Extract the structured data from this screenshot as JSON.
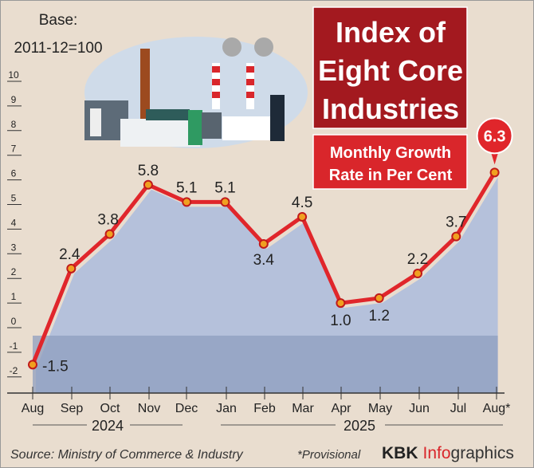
{
  "header": {
    "title": "Index of Eight Core Industries",
    "title_lines": [
      "Index of",
      "Eight Core",
      "Industries"
    ],
    "subtitle_lines": [
      "Monthly Growth",
      "Rate in Per Cent"
    ],
    "base_lines": [
      "Base:",
      "2011-12=100"
    ]
  },
  "footer": {
    "source": "Source: Ministry of Commerce & Industry",
    "note": "*Provisional",
    "brand_kbk": "KBK",
    "brand_info": "Info",
    "brand_graphics": "graphics"
  },
  "colors": {
    "line": "#e0262b",
    "title_bg": "#a3191f",
    "subtitle_bg": "#d9262b",
    "area": "#b5c1db",
    "area_neg": "#8f9dbf",
    "background": "#e9ddcf"
  },
  "chart_data": {
    "type": "area",
    "categories": [
      "Aug",
      "Sep",
      "Oct",
      "Nov",
      "Dec",
      "Jan",
      "Feb",
      "Mar",
      "Apr",
      "May",
      "Jun",
      "Jul",
      "Aug*"
    ],
    "year_groups": [
      {
        "label": "2024",
        "from": "Aug",
        "to": "Dec"
      },
      {
        "label": "2025",
        "from": "Jan",
        "to": "Aug*"
      }
    ],
    "values": [
      -1.5,
      2.4,
      3.8,
      5.8,
      5.1,
      5.1,
      3.4,
      4.5,
      1.0,
      1.2,
      2.2,
      3.7,
      6.3
    ],
    "labels": [
      "-1.5",
      "2.4",
      "3.8",
      "5.8",
      "5.1",
      "5.1",
      "3.4",
      "4.5",
      "1.0",
      "1.2",
      "2.2",
      "3.7",
      "6.3"
    ],
    "yticks": [
      "10",
      "9",
      "8",
      "7",
      "6",
      "5",
      "4",
      "3",
      "2",
      "1",
      "0",
      "-1",
      "-2"
    ],
    "ylim": [
      -2,
      10
    ],
    "grid": false,
    "highlight_last": true
  }
}
